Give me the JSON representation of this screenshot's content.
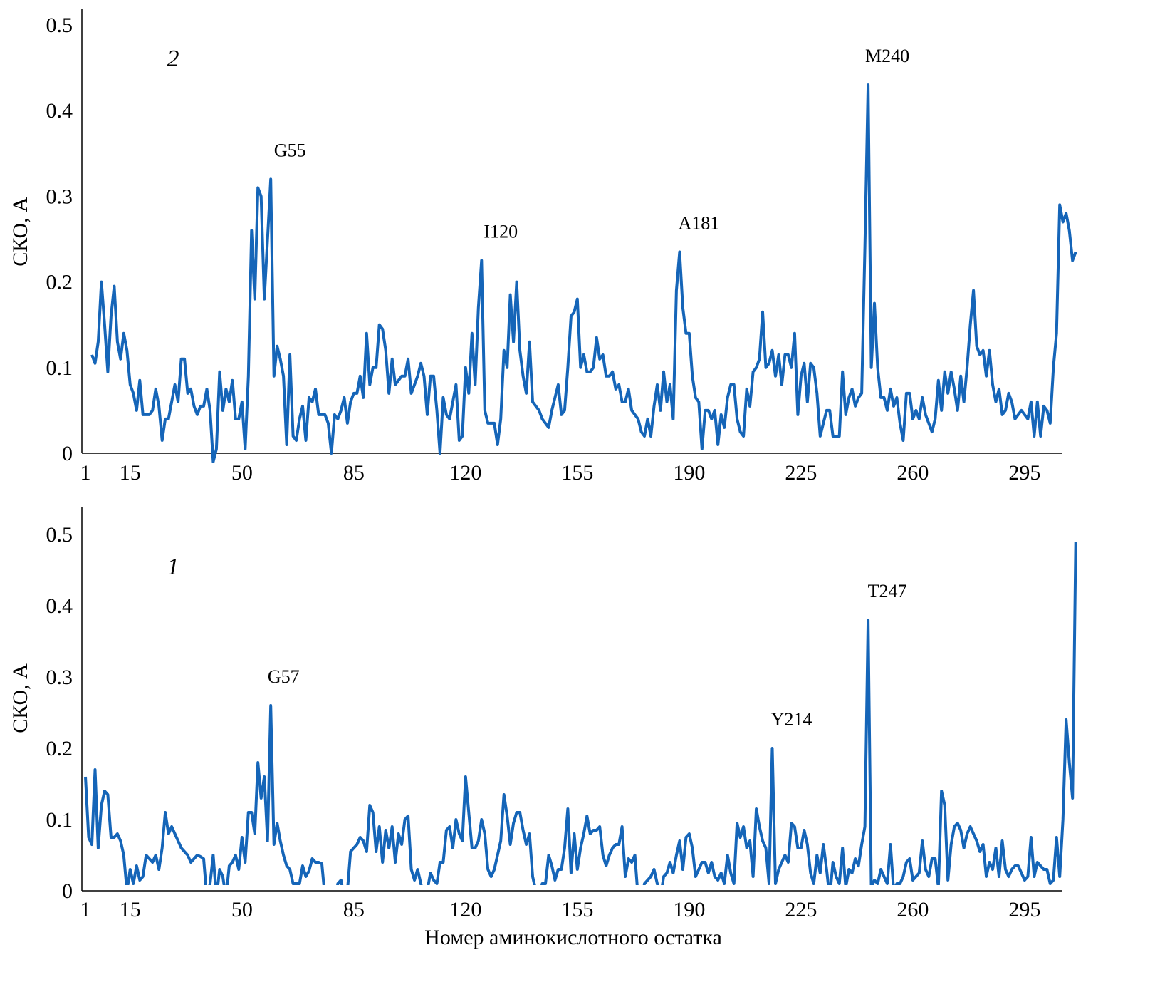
{
  "chart_data": [
    {
      "type": "line",
      "panel_label": "2",
      "ylabel": "СКО, А",
      "xlabel": "",
      "ylim": [
        0,
        0.5
      ],
      "xlim": [
        1,
        307
      ],
      "yticks": [
        "0",
        "0.1",
        "0.2",
        "0.3",
        "0.4",
        "0.5"
      ],
      "ytick_values": [
        0,
        0.1,
        0.2,
        0.3,
        0.4,
        0.5
      ],
      "xticks": [
        "1",
        "15",
        "50",
        "85",
        "120",
        "155",
        "190",
        "225",
        "260",
        "295"
      ],
      "xtick_values": [
        1,
        15,
        50,
        85,
        120,
        155,
        190,
        225,
        260,
        295
      ],
      "color": "#1565b8",
      "x_start": 3,
      "values": [
        0.115,
        0.105,
        0.13,
        0.2,
        0.15,
        0.095,
        0.16,
        0.195,
        0.13,
        0.11,
        0.14,
        0.12,
        0.08,
        0.07,
        0.05,
        0.085,
        0.045,
        0.045,
        0.045,
        0.05,
        0.075,
        0.055,
        0.015,
        0.04,
        0.04,
        0.06,
        0.08,
        0.06,
        0.11,
        0.11,
        0.07,
        0.075,
        0.055,
        0.045,
        0.055,
        0.055,
        0.075,
        0.05,
        -0.01,
        0.005,
        0.095,
        0.05,
        0.075,
        0.06,
        0.085,
        0.04,
        0.04,
        0.06,
        0.005,
        0.09,
        0.26,
        0.18,
        0.31,
        0.3,
        0.18,
        0.25,
        0.32,
        0.09,
        0.125,
        0.11,
        0.09,
        0.01,
        0.115,
        0.02,
        0.015,
        0.04,
        0.055,
        0.015,
        0.065,
        0.06,
        0.075,
        0.045,
        0.045,
        0.045,
        0.035,
        0.0,
        0.045,
        0.04,
        0.05,
        0.065,
        0.035,
        0.06,
        0.07,
        0.07,
        0.09,
        0.065,
        0.14,
        0.08,
        0.1,
        0.1,
        0.15,
        0.145,
        0.12,
        0.07,
        0.11,
        0.08,
        0.085,
        0.09,
        0.09,
        0.11,
        0.07,
        0.08,
        0.09,
        0.105,
        0.09,
        0.045,
        0.09,
        0.09,
        0.05,
        0.0,
        0.065,
        0.045,
        0.04,
        0.06,
        0.08,
        0.015,
        0.02,
        0.1,
        0.07,
        0.14,
        0.08,
        0.17,
        0.225,
        0.05,
        0.035,
        0.035,
        0.035,
        0.01,
        0.04,
        0.12,
        0.1,
        0.185,
        0.13,
        0.2,
        0.12,
        0.09,
        0.07,
        0.13,
        0.06,
        0.055,
        0.05,
        0.04,
        0.035,
        0.03,
        0.05,
        0.065,
        0.08,
        0.045,
        0.05,
        0.1,
        0.16,
        0.165,
        0.18,
        0.1,
        0.115,
        0.095,
        0.095,
        0.1,
        0.135,
        0.11,
        0.115,
        0.09,
        0.09,
        0.095,
        0.075,
        0.08,
        0.06,
        0.06,
        0.075,
        0.05,
        0.045,
        0.04,
        0.025,
        0.02,
        0.04,
        0.02,
        0.055,
        0.08,
        0.05,
        0.095,
        0.06,
        0.08,
        0.04,
        0.19,
        0.235,
        0.17,
        0.14,
        0.14,
        0.09,
        0.065,
        0.06,
        0.005,
        0.05,
        0.05,
        0.04,
        0.05,
        0.01,
        0.045,
        0.03,
        0.065,
        0.08,
        0.08,
        0.04,
        0.025,
        0.02,
        0.075,
        0.055,
        0.095,
        0.1,
        0.11,
        0.165,
        0.1,
        0.105,
        0.12,
        0.09,
        0.115,
        0.08,
        0.115,
        0.115,
        0.1,
        0.14,
        0.045,
        0.09,
        0.105,
        0.06,
        0.105,
        0.1,
        0.07,
        0.02,
        0.035,
        0.05,
        0.05,
        0.02,
        0.02,
        0.02,
        0.095,
        0.045,
        0.065,
        0.075,
        0.055,
        0.065,
        0.07,
        0.24,
        0.43,
        0.1,
        0.175,
        0.1,
        0.065,
        0.065,
        0.05,
        0.075,
        0.055,
        0.065,
        0.035,
        0.015,
        0.07,
        0.07,
        0.04,
        0.05,
        0.04,
        0.065,
        0.045,
        0.035,
        0.025,
        0.04,
        0.085,
        0.05,
        0.095,
        0.07,
        0.095,
        0.075,
        0.05,
        0.09,
        0.06,
        0.1,
        0.15,
        0.19,
        0.125,
        0.115,
        0.12,
        0.09,
        0.12,
        0.08,
        0.06,
        0.075,
        0.045,
        0.05,
        0.07,
        0.06,
        0.04,
        0.045,
        0.05,
        0.045,
        0.04,
        0.06,
        0.02,
        0.06,
        0.02,
        0.055,
        0.05,
        0.035,
        0.1,
        0.14,
        0.29,
        0.27,
        0.28,
        0.26,
        0.225,
        0.235
      ],
      "annotations": [
        {
          "text": "G55",
          "at": 59,
          "value": 0.32
        },
        {
          "text": "I120",
          "at": 125,
          "value": 0.225
        },
        {
          "text": "A181",
          "at": 187,
          "value": 0.235
        },
        {
          "text": "M240",
          "at": 246,
          "value": 0.43
        }
      ]
    },
    {
      "type": "line",
      "panel_label": "1",
      "ylabel": "СКО, А",
      "xlabel": "Номер аминокислотного остатка",
      "ylim": [
        0,
        0.5
      ],
      "xlim": [
        1,
        307
      ],
      "yticks": [
        "0",
        "0.1",
        "0.2",
        "0.3",
        "0.4",
        "0.5"
      ],
      "ytick_values": [
        0,
        0.1,
        0.2,
        0.3,
        0.4,
        0.5
      ],
      "xticks": [
        "1",
        "15",
        "50",
        "85",
        "120",
        "155",
        "190",
        "225",
        "260",
        "295"
      ],
      "xtick_values": [
        1,
        15,
        50,
        85,
        120,
        155,
        190,
        225,
        260,
        295
      ],
      "color": "#1565b8",
      "x_start": 1,
      "values": [
        0.16,
        0.075,
        0.065,
        0.17,
        0.06,
        0.12,
        0.14,
        0.135,
        0.075,
        0.075,
        0.08,
        0.07,
        0.05,
        0.0,
        0.03,
        0.01,
        0.035,
        0.015,
        0.02,
        0.05,
        0.045,
        0.04,
        0.05,
        0.03,
        0.06,
        0.11,
        0.08,
        0.09,
        0.08,
        0.07,
        0.06,
        0.055,
        0.05,
        0.04,
        0.045,
        0.05,
        0.048,
        0.045,
        -0.01,
        0.01,
        0.05,
        -0.01,
        0.03,
        0.02,
        -0.01,
        0.035,
        0.04,
        0.05,
        0.03,
        0.075,
        0.04,
        0.11,
        0.11,
        0.08,
        0.18,
        0.13,
        0.16,
        0.07,
        0.26,
        0.065,
        0.095,
        0.07,
        0.05,
        0.035,
        0.03,
        0.01,
        0.01,
        0.01,
        0.035,
        0.02,
        0.028,
        0.045,
        0.04,
        0.04,
        0.038,
        -0.01,
        -0.02,
        -0.01,
        -0.02,
        0.01,
        0.015,
        -0.01,
        0.0,
        0.055,
        0.06,
        0.065,
        0.075,
        0.07,
        0.055,
        0.12,
        0.11,
        0.055,
        0.09,
        0.04,
        0.085,
        0.06,
        0.09,
        0.04,
        0.08,
        0.065,
        0.1,
        0.105,
        0.03,
        0.015,
        0.03,
        0.01,
        -0.01,
        0.0,
        0.025,
        0.015,
        0.01,
        0.04,
        0.04,
        0.085,
        0.09,
        0.06,
        0.1,
        0.08,
        0.07,
        0.16,
        0.11,
        0.06,
        0.06,
        0.07,
        0.1,
        0.08,
        0.03,
        0.02,
        0.03,
        0.05,
        0.07,
        0.135,
        0.105,
        0.065,
        0.095,
        0.11,
        0.11,
        0.085,
        0.065,
        0.08,
        0.02,
        0.0,
        -0.01,
        0.01,
        0.01,
        0.05,
        0.035,
        0.015,
        0.03,
        0.03,
        0.06,
        0.115,
        0.025,
        0.08,
        0.03,
        0.06,
        0.08,
        0.105,
        0.08,
        0.085,
        0.085,
        0.09,
        0.05,
        0.035,
        0.05,
        0.06,
        0.065,
        0.065,
        0.09,
        0.02,
        0.045,
        0.04,
        0.05,
        -0.01,
        -0.02,
        0.01,
        0.015,
        0.02,
        0.03,
        0.01,
        -0.01,
        0.02,
        0.025,
        0.04,
        0.025,
        0.05,
        0.07,
        0.03,
        0.075,
        0.08,
        0.06,
        0.02,
        0.03,
        0.04,
        0.04,
        0.025,
        0.04,
        0.02,
        0.015,
        0.025,
        0.01,
        0.05,
        0.025,
        0.01,
        0.095,
        0.075,
        0.09,
        0.06,
        0.07,
        0.02,
        0.115,
        0.09,
        0.07,
        0.06,
        0.01,
        0.2,
        0.01,
        0.03,
        0.04,
        0.05,
        0.04,
        0.095,
        0.09,
        0.06,
        0.06,
        0.085,
        0.065,
        0.025,
        0.01,
        0.05,
        0.025,
        0.065,
        0.03,
        -0.01,
        0.04,
        0.02,
        0.01,
        0.06,
        0.005,
        0.03,
        0.025,
        0.045,
        0.035,
        0.065,
        0.09,
        0.38,
        0.005,
        0.015,
        0.01,
        0.03,
        0.02,
        0.01,
        0.065,
        0.0,
        0.01,
        0.01,
        0.02,
        0.04,
        0.045,
        0.015,
        0.02,
        0.025,
        0.07,
        0.03,
        0.02,
        0.045,
        0.045,
        0.005,
        0.14,
        0.12,
        0.015,
        0.065,
        0.09,
        0.095,
        0.085,
        0.06,
        0.08,
        0.09,
        0.08,
        0.07,
        0.055,
        0.065,
        0.02,
        0.04,
        0.03,
        0.06,
        0.02,
        0.07,
        0.03,
        0.02,
        0.03,
        0.035,
        0.035,
        0.025,
        0.015,
        0.02,
        0.075,
        0.02,
        0.04,
        0.035,
        0.03,
        0.03,
        0.01,
        0.015,
        0.075,
        0.02,
        0.1,
        0.24,
        0.18,
        0.13,
        0.49
      ],
      "annotations": [
        {
          "text": "G57",
          "at": 57,
          "value": 0.26
        },
        {
          "text": "Y214",
          "at": 216,
          "value": 0.2
        },
        {
          "text": "T247",
          "at": 246,
          "value": 0.38
        }
      ]
    }
  ]
}
